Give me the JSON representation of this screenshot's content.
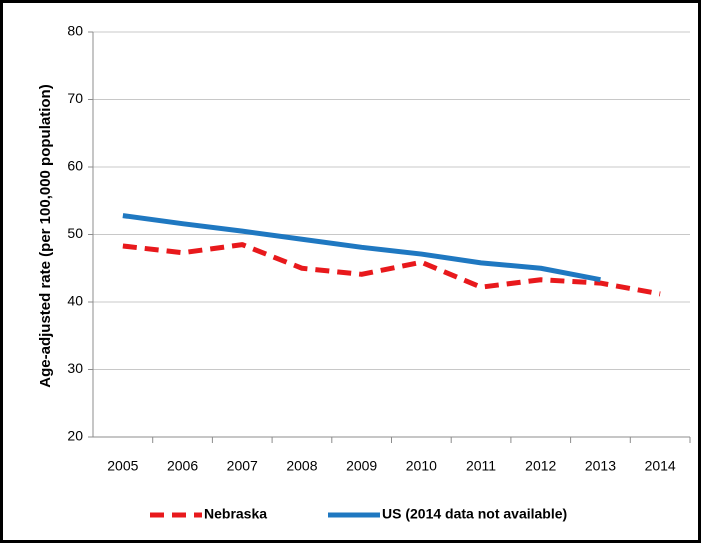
{
  "chart_data": {
    "type": "line",
    "y_label": "Age-adjusted rate (per 100,000 population)",
    "categories": [
      "2005",
      "2006",
      "2007",
      "2008",
      "2009",
      "2010",
      "2011",
      "2012",
      "2013",
      "2014"
    ],
    "series": [
      {
        "name": "Nebraska",
        "color": "#e8191c",
        "dashed": true,
        "values": [
          48.3,
          47.3,
          48.5,
          45.0,
          44.1,
          45.9,
          42.2,
          43.3,
          42.8,
          41.2
        ]
      },
      {
        "name": "US (2014 data not available)",
        "color": "#1f78c1",
        "dashed": false,
        "values": [
          52.8,
          51.6,
          50.5,
          49.3,
          48.1,
          47.1,
          45.8,
          45.0,
          43.3,
          null
        ]
      }
    ],
    "ylim": [
      20,
      80
    ],
    "yticks": [
      20,
      30,
      40,
      50,
      60,
      70,
      80
    ],
    "grid": true,
    "legend": "bottom"
  }
}
